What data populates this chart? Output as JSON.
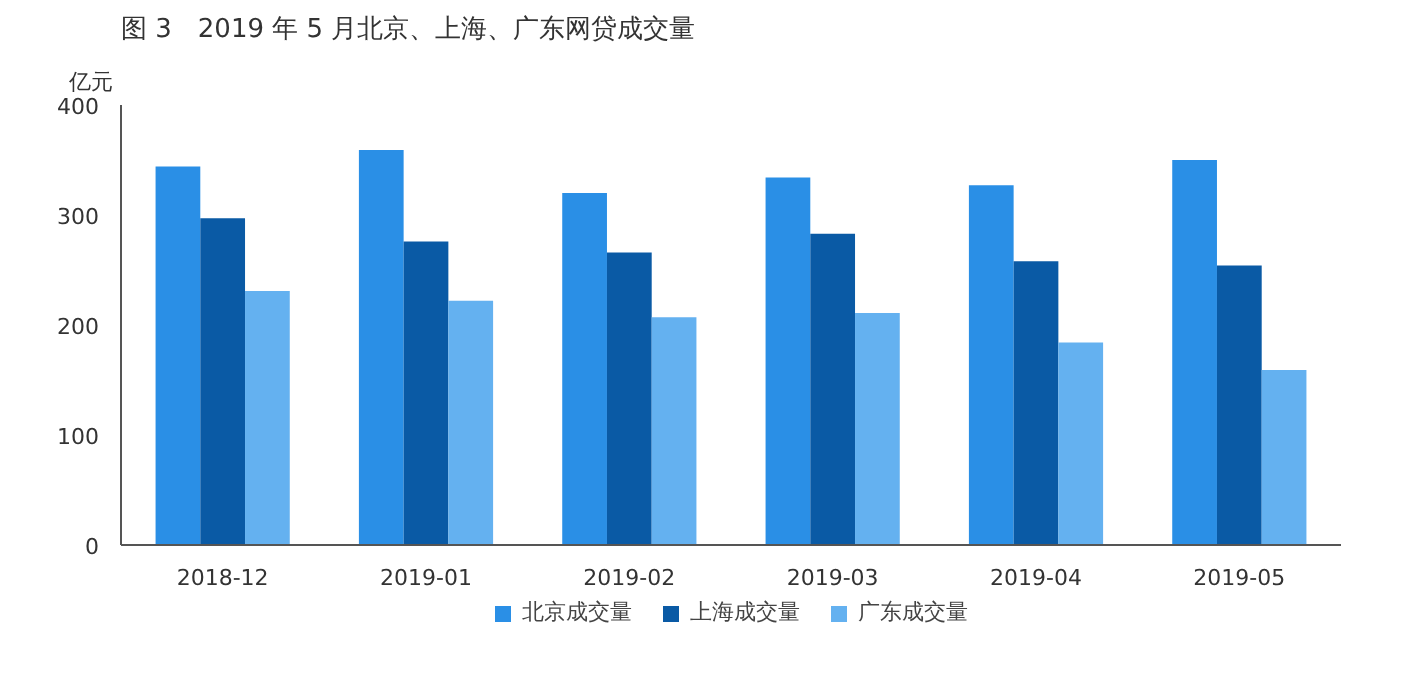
{
  "chart_data": {
    "type": "bar",
    "title": "图 3　2019 年 5 月北京、上海、广东网贷成交量",
    "ylabel": "亿元",
    "categories": [
      "2018-12",
      "2019-01",
      "2019-02",
      "2019-03",
      "2019-04",
      "2019-05"
    ],
    "series": [
      {
        "name": "北京成交量",
        "color": "#2a8fe6",
        "values": [
          344,
          359,
          320,
          334,
          327,
          350
        ]
      },
      {
        "name": "上海成交量",
        "color": "#0a5aa5",
        "values": [
          297,
          276,
          266,
          283,
          258,
          254
        ]
      },
      {
        "name": "广东成交量",
        "color": "#64b1f0",
        "values": [
          231,
          222,
          207,
          211,
          184,
          159
        ]
      }
    ],
    "ylim": [
      0,
      400
    ],
    "yticks": [
      0,
      100,
      200,
      300,
      400
    ],
    "grid": false,
    "legend": "bottom"
  }
}
